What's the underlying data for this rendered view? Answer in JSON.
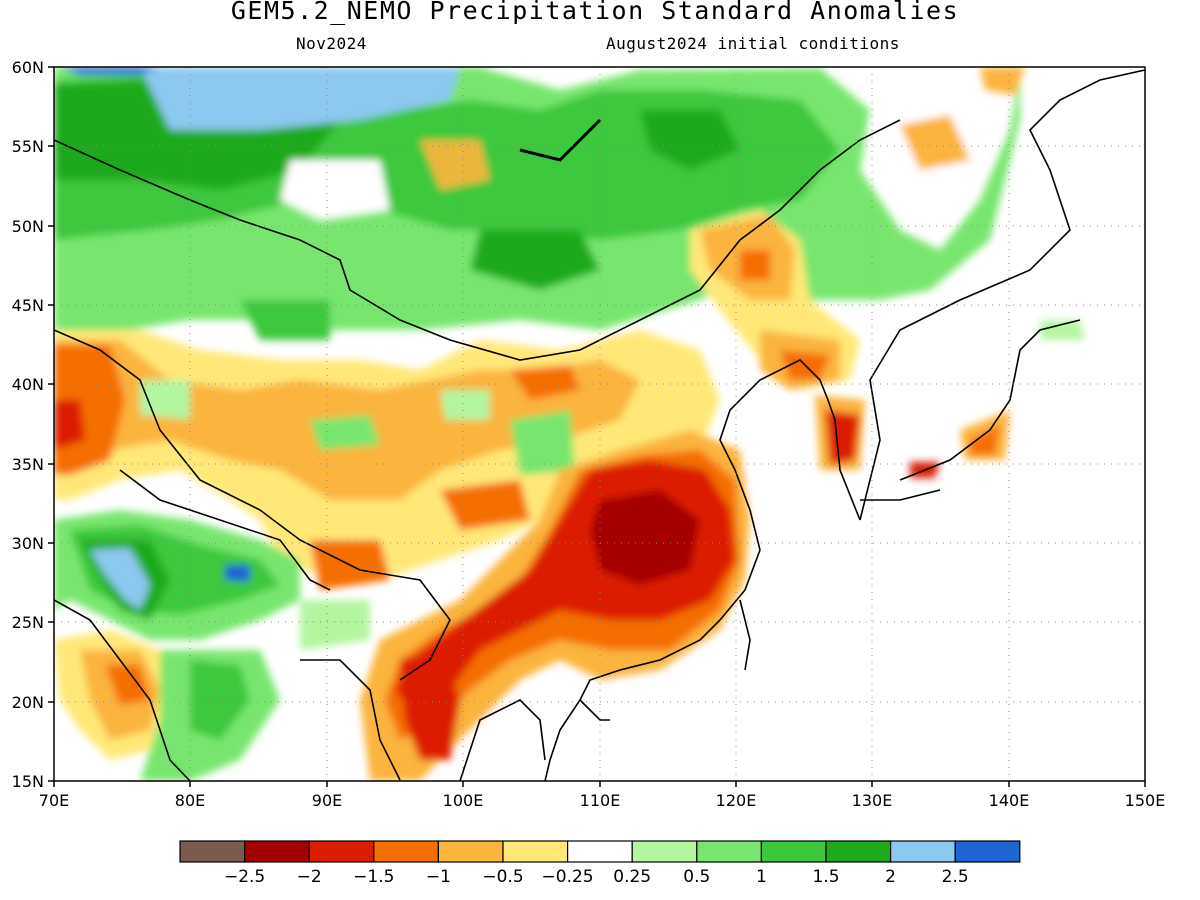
{
  "title": "GEM5.2_NEMO Precipitation Standard Anomalies",
  "subtitle_left": "Nov2024",
  "subtitle_right": "August2024 initial conditions",
  "map": {
    "lon_range": [
      70,
      150
    ],
    "lat_range": [
      15,
      60
    ],
    "lon_ticks": [
      "70E",
      "80E",
      "90E",
      "100E",
      "110E",
      "120E",
      "130E",
      "140E",
      "150E"
    ],
    "lat_ticks": [
      "60N",
      "55N",
      "50N",
      "45N",
      "40N",
      "35N",
      "30N",
      "25N",
      "20N",
      "15N"
    ],
    "grid": "dotted"
  },
  "legend": {
    "colors": [
      "#7b5a4f",
      "#a50000",
      "#dc1e00",
      "#f56e00",
      "#fbb43c",
      "#ffe878",
      "#ffffff",
      "#b4f5a0",
      "#78e66e",
      "#3cc83c",
      "#1eaa1e",
      "#8cc8f0",
      "#1e64d2"
    ],
    "labels": [
      "−2.5",
      "−2",
      "−1.5",
      "−1",
      "−0.5",
      "−0.25",
      "0.25",
      "0.5",
      "1",
      "1.5",
      "2",
      "2.5"
    ]
  },
  "anomaly_regions": [
    {
      "lon": 75,
      "lat": 57,
      "value": 1.5
    },
    {
      "lon": 84,
      "lat": 58.5,
      "value": 2
    },
    {
      "lon": 75,
      "lat": 50,
      "value": 1
    },
    {
      "lon": 90,
      "lat": 51,
      "value": 0.5
    },
    {
      "lon": 97,
      "lat": 47,
      "value": 1
    },
    {
      "lon": 104,
      "lat": 48,
      "value": 1.5
    },
    {
      "lon": 115,
      "lat": 56,
      "value": 1
    },
    {
      "lon": 126,
      "lat": 52,
      "value": 1
    },
    {
      "lon": 105,
      "lat": 44,
      "value": 0.5
    },
    {
      "lon": 121,
      "lat": 46,
      "value": -1
    },
    {
      "lon": 126,
      "lat": 42,
      "value": -0.5
    },
    {
      "lon": 127,
      "lat": 36,
      "value": -1.5
    },
    {
      "lon": 113,
      "lat": 29,
      "value": -2
    },
    {
      "lon": 105,
      "lat": 25,
      "value": -1.5
    },
    {
      "lon": 98,
      "lat": 21,
      "value": -1
    },
    {
      "lon": 100,
      "lat": 38,
      "value": -0.5
    },
    {
      "lon": 89,
      "lat": 36,
      "value": -0.5
    },
    {
      "lon": 74,
      "lat": 38,
      "value": -1
    },
    {
      "lon": 76,
      "lat": 28,
      "value": 2
    },
    {
      "lon": 82,
      "lat": 29,
      "value": 1.5
    },
    {
      "lon": 75,
      "lat": 21,
      "value": -1
    },
    {
      "lon": 95,
      "lat": 28,
      "value": -1
    },
    {
      "lon": 139,
      "lat": 36,
      "value": -1
    },
    {
      "lon": 131,
      "lat": 57,
      "value": -0.5
    }
  ]
}
